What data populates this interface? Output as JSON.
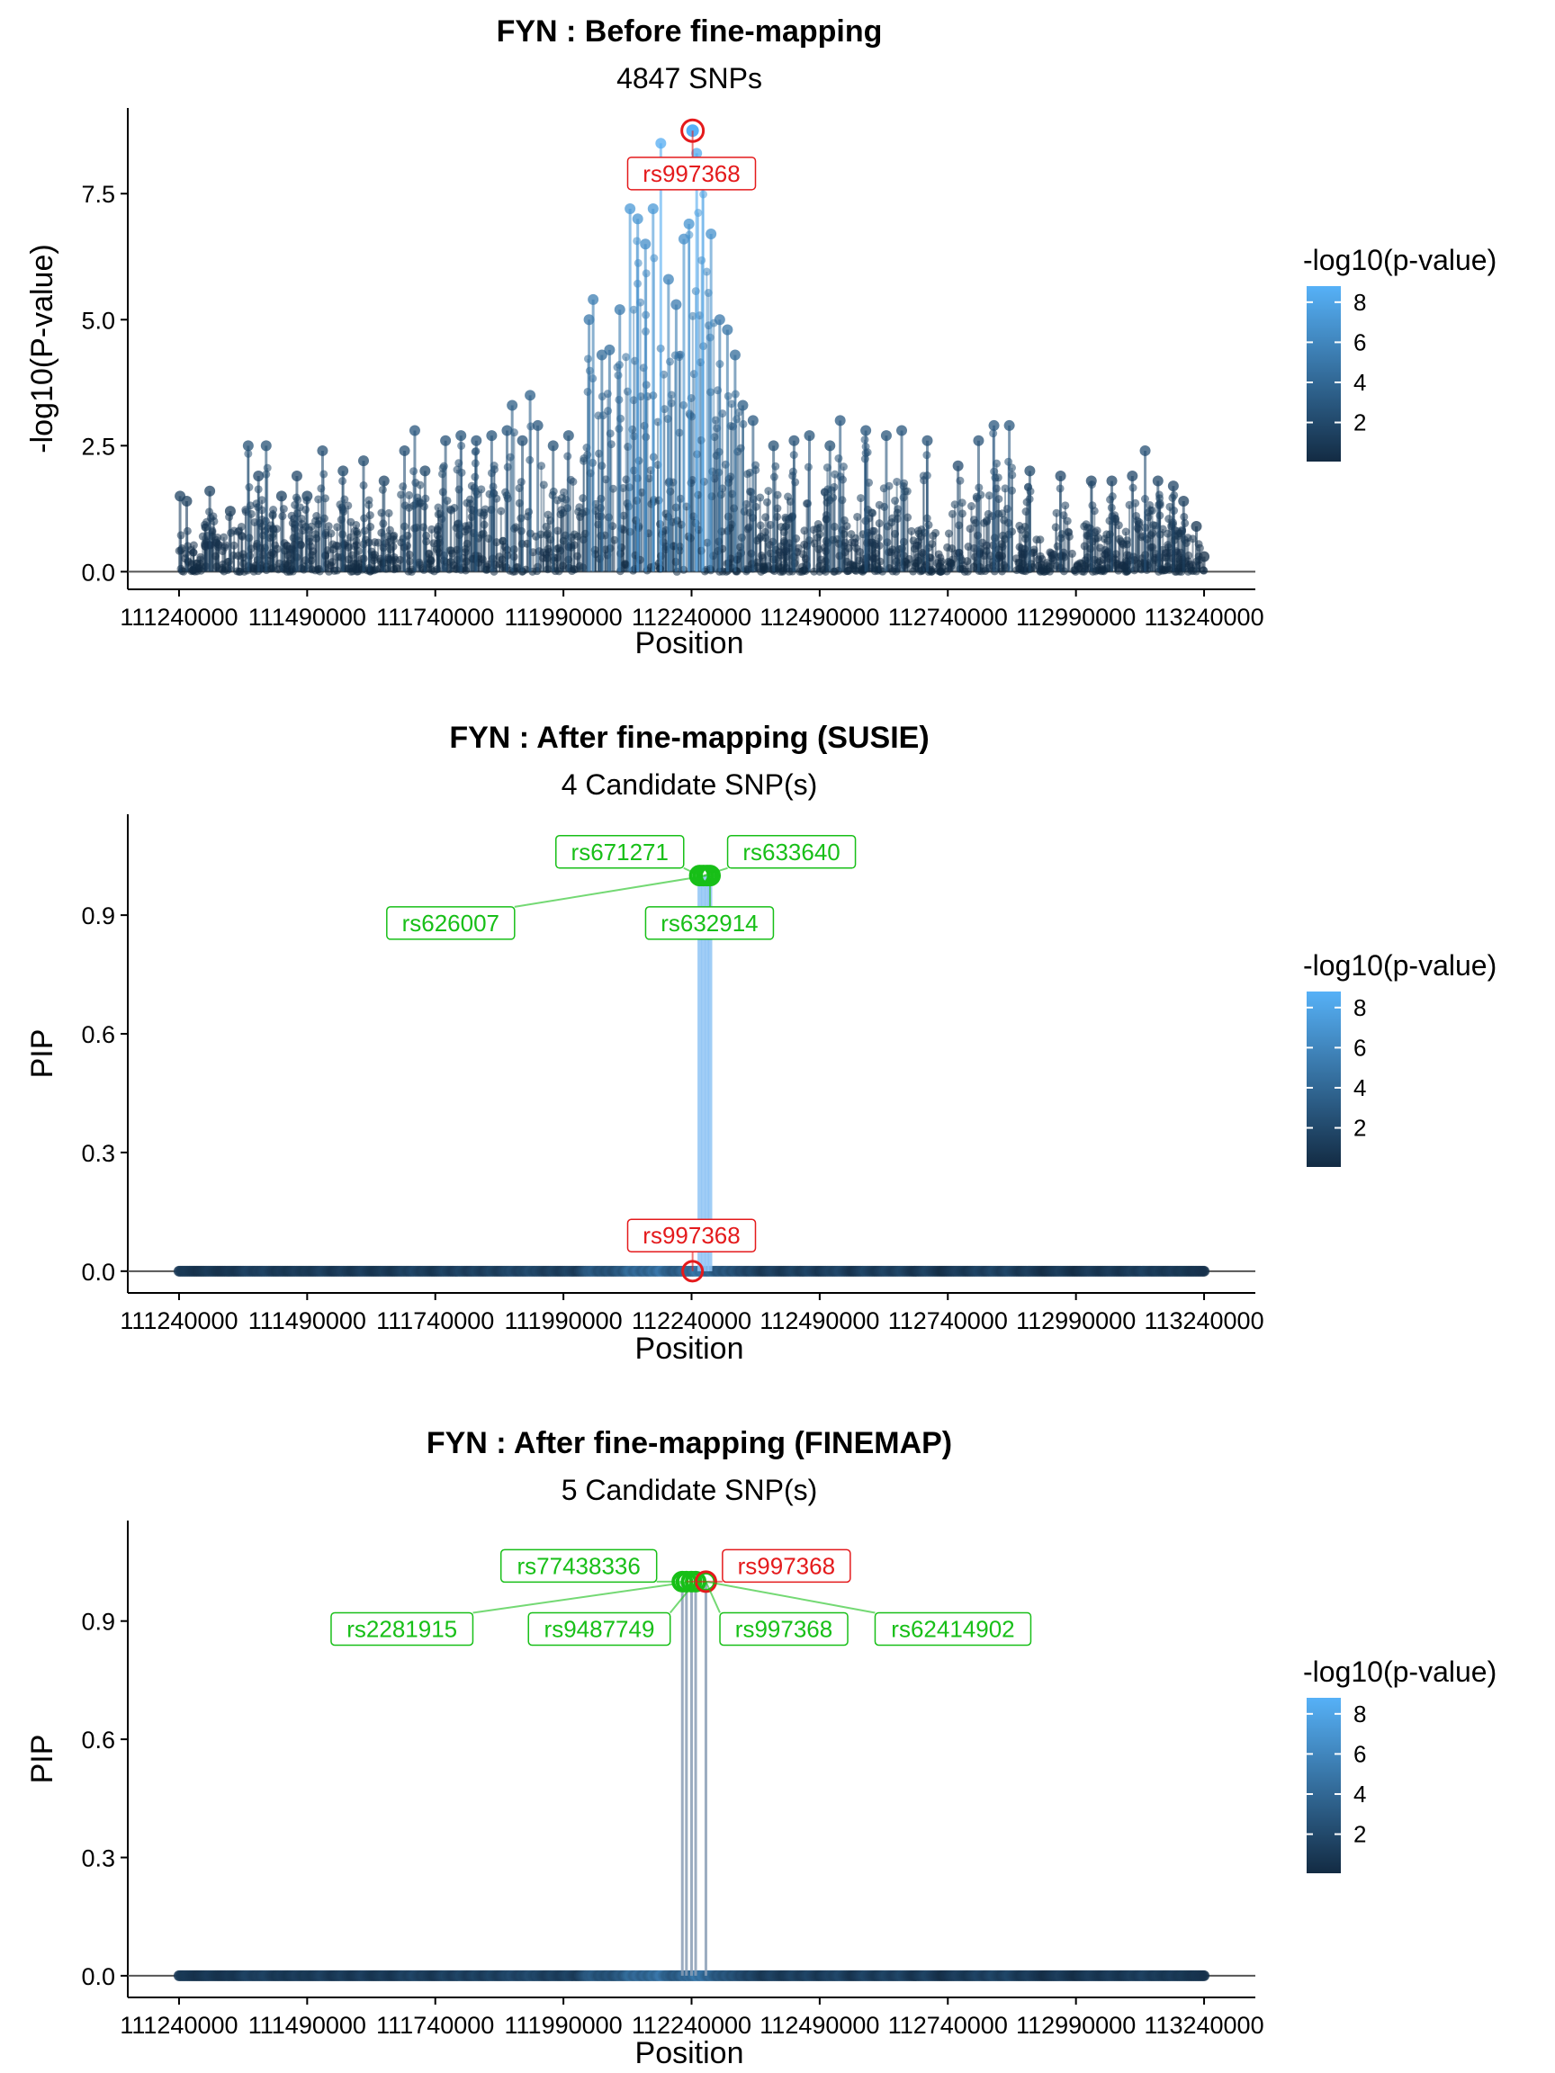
{
  "colors": {
    "scale_low": "#132b43",
    "scale_high": "#56b1f7",
    "highlight": "#e41a1c",
    "candidate": "#18bf18",
    "baseline": "#555555",
    "axis": "#000000"
  },
  "legend": {
    "title": "-log10(p-value)",
    "ticks": [
      2,
      4,
      6,
      8
    ],
    "range": [
      0.05,
      8.8
    ]
  },
  "chart_data": [
    {
      "type": "scatter",
      "title": "FYN : Before fine-mapping",
      "subtitle": "4847 SNPs",
      "xlabel": "Position",
      "ylabel": "-log10(P-value)",
      "xlim": [
        111140000,
        113340000
      ],
      "ylim": [
        -0.35,
        9.2
      ],
      "x_ticks": [
        111240000,
        111490000,
        111740000,
        111990000,
        112240000,
        112490000,
        112740000,
        112990000,
        113240000
      ],
      "x_tick_labels": [
        "111240000",
        "111490000",
        "111740000",
        "111990000",
        "112240000",
        "112490000",
        "112740000",
        "112990000",
        "113240000"
      ],
      "y_ticks": [
        0,
        2.5,
        5,
        7.5
      ],
      "y_tick_labels": [
        "0.0",
        "2.5",
        "5.0",
        "7.5"
      ],
      "lead_snp": {
        "label": "rs997368",
        "x": 112242000,
        "y": 8.75
      },
      "labels": [
        {
          "text": "rs997368",
          "color": "red",
          "x": 112240000,
          "y": 7.9
        }
      ],
      "peaks": [
        [
          111242000,
          1.5
        ],
        [
          111255000,
          1.4
        ],
        [
          111300000,
          1.6
        ],
        [
          111340000,
          1.2
        ],
        [
          111375000,
          2.5
        ],
        [
          111395000,
          1.9
        ],
        [
          111410000,
          2.5
        ],
        [
          111440000,
          1.5
        ],
        [
          111470000,
          1.9
        ],
        [
          111490000,
          1.5
        ],
        [
          111520000,
          2.4
        ],
        [
          111560000,
          2.0
        ],
        [
          111600000,
          2.2
        ],
        [
          111640000,
          1.8
        ],
        [
          111680000,
          2.4
        ],
        [
          111700000,
          2.8
        ],
        [
          111720000,
          2.0
        ],
        [
          111760000,
          2.6
        ],
        [
          111790000,
          2.7
        ],
        [
          111820000,
          2.6
        ],
        [
          111850000,
          2.7
        ],
        [
          111880000,
          2.8
        ],
        [
          111890000,
          3.3
        ],
        [
          111910000,
          2.6
        ],
        [
          111925000,
          3.5
        ],
        [
          111940000,
          2.9
        ],
        [
          111970000,
          2.5
        ],
        [
          112000000,
          2.7
        ],
        [
          112040000,
          5.0
        ],
        [
          112048000,
          5.4
        ],
        [
          112065000,
          4.3
        ],
        [
          112080000,
          4.4
        ],
        [
          112100000,
          5.2
        ],
        [
          112120000,
          7.2
        ],
        [
          112135000,
          7.0
        ],
        [
          112150000,
          6.5
        ],
        [
          112165000,
          7.2
        ],
        [
          112180000,
          8.5
        ],
        [
          112195000,
          5.8
        ],
        [
          112210000,
          5.3
        ],
        [
          112225000,
          6.6
        ],
        [
          112235000,
          6.9
        ],
        [
          112250000,
          8.3
        ],
        [
          112262000,
          8.0
        ],
        [
          112278000,
          6.7
        ],
        [
          112295000,
          5.0
        ],
        [
          112310000,
          4.8
        ],
        [
          112325000,
          4.3
        ],
        [
          112340000,
          3.3
        ],
        [
          112360000,
          3.0
        ],
        [
          112400000,
          2.5
        ],
        [
          112440000,
          2.6
        ],
        [
          112470000,
          2.7
        ],
        [
          112510000,
          2.5
        ],
        [
          112530000,
          3.0
        ],
        [
          112580000,
          2.8
        ],
        [
          112620000,
          2.7
        ],
        [
          112650000,
          2.8
        ],
        [
          112700000,
          2.6
        ],
        [
          112760000,
          2.1
        ],
        [
          112800000,
          2.6
        ],
        [
          112830000,
          2.9
        ],
        [
          112860000,
          2.9
        ],
        [
          112900000,
          2.0
        ],
        [
          112960000,
          1.9
        ],
        [
          113020000,
          1.8
        ],
        [
          113060000,
          1.8
        ],
        [
          113100000,
          1.9
        ],
        [
          113125000,
          2.4
        ],
        [
          113150000,
          1.8
        ],
        [
          113180000,
          1.7
        ],
        [
          113200000,
          1.4
        ],
        [
          113225000,
          0.9
        ],
        [
          113240000,
          0.3
        ]
      ]
    },
    {
      "type": "scatter",
      "title": "FYN : After fine-mapping (SUSIE)",
      "subtitle": "4 Candidate SNP(s)",
      "xlabel": "Position",
      "ylabel": "PIP",
      "xlim": [
        111140000,
        113340000
      ],
      "ylim": [
        -0.055,
        1.155
      ],
      "x_ticks": [
        111240000,
        111490000,
        111740000,
        111990000,
        112240000,
        112490000,
        112740000,
        112990000,
        113240000
      ],
      "x_tick_labels": [
        "111240000",
        "111490000",
        "111740000",
        "111990000",
        "112240000",
        "112490000",
        "112740000",
        "112990000",
        "113240000"
      ],
      "y_ticks": [
        0,
        0.3,
        0.6,
        0.9
      ],
      "y_tick_labels": [
        "0.0",
        "0.3",
        "0.6",
        "0.9"
      ],
      "lead_snp": {
        "label": "rs997368",
        "x": 112242000,
        "y": 0.0
      },
      "candidates": [
        {
          "x": 112256000,
          "y": 1.0
        },
        {
          "x": 112263000,
          "y": 1.0
        },
        {
          "x": 112270000,
          "y": 1.0
        },
        {
          "x": 112276000,
          "y": 1.0
        }
      ],
      "labels": [
        {
          "text": "rs671271",
          "color": "green",
          "x": 112100000,
          "y": 1.06
        },
        {
          "text": "rs633640",
          "color": "green",
          "x": 112435000,
          "y": 1.06
        },
        {
          "text": "rs626007",
          "color": "green",
          "x": 111770000,
          "y": 0.88
        },
        {
          "text": "rs632914",
          "color": "green",
          "x": 112275000,
          "y": 0.88
        },
        {
          "text": "rs997368",
          "color": "red",
          "x": 112240000,
          "y": 0.09
        }
      ]
    },
    {
      "type": "scatter",
      "title": "FYN : After fine-mapping (FINEMAP)",
      "subtitle": "5 Candidate SNP(s)",
      "xlabel": "Position",
      "ylabel": "PIP",
      "xlim": [
        111140000,
        113340000
      ],
      "ylim": [
        -0.055,
        1.155
      ],
      "x_ticks": [
        111240000,
        111490000,
        111740000,
        111990000,
        112240000,
        112490000,
        112740000,
        112990000,
        113240000
      ],
      "x_tick_labels": [
        "111240000",
        "111490000",
        "111740000",
        "111990000",
        "112240000",
        "112490000",
        "112740000",
        "112990000",
        "113240000"
      ],
      "y_ticks": [
        0,
        0.3,
        0.6,
        0.9
      ],
      "y_tick_labels": [
        "0.0",
        "0.3",
        "0.6",
        "0.9"
      ],
      "lead_snp": {
        "label": "rs997368",
        "x": 112268000,
        "y": 1.0
      },
      "candidates": [
        {
          "x": 112222000,
          "y": 1.0
        },
        {
          "x": 112230000,
          "y": 1.0
        },
        {
          "x": 112240000,
          "y": 1.0
        },
        {
          "x": 112248000,
          "y": 1.0
        },
        {
          "x": 112268000,
          "y": 1.0
        }
      ],
      "labels": [
        {
          "text": "rs77438336",
          "color": "green",
          "x": 112020000,
          "y": 1.04
        },
        {
          "text": "rs997368",
          "color": "red",
          "x": 112425000,
          "y": 1.04
        },
        {
          "text": "rs2281915",
          "color": "green",
          "x": 111675000,
          "y": 0.88
        },
        {
          "text": "rs9487749",
          "color": "green",
          "x": 112060000,
          "y": 0.88
        },
        {
          "text": "rs997368",
          "color": "green",
          "x": 112420000,
          "y": 0.88
        },
        {
          "text": "rs62414902",
          "color": "green",
          "x": 112750000,
          "y": 0.88
        }
      ]
    }
  ]
}
